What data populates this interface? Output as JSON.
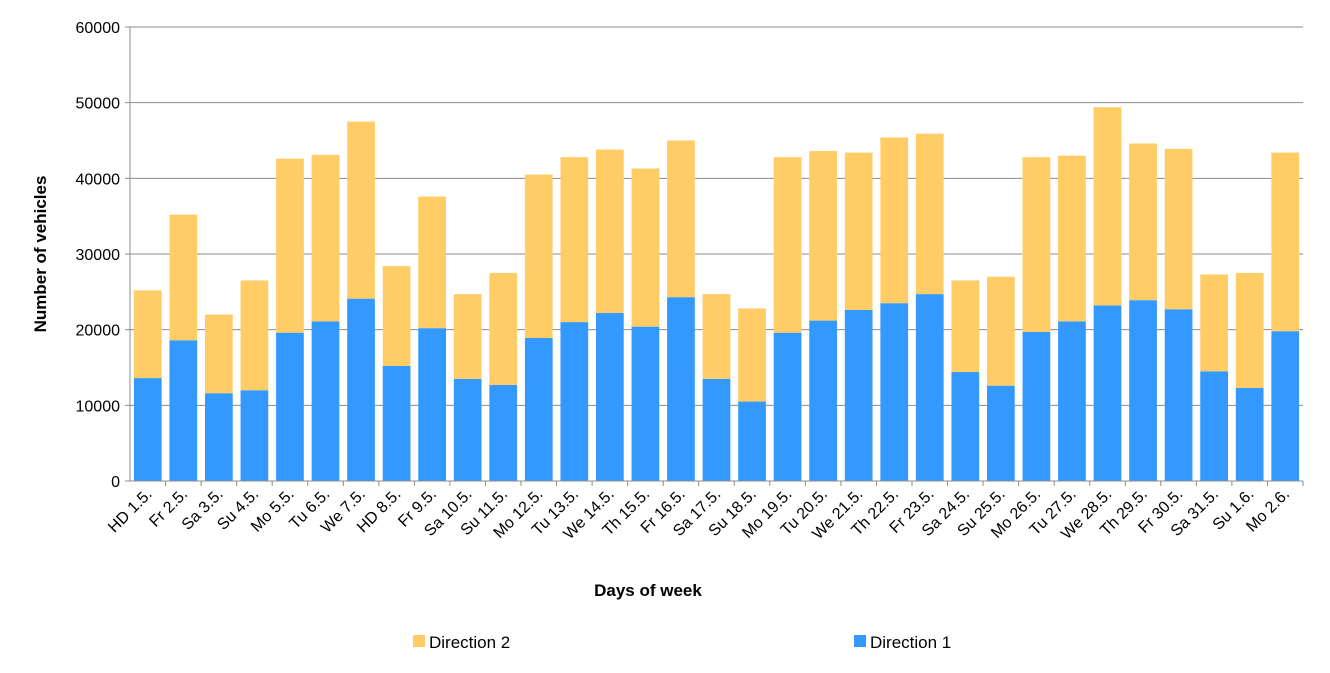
{
  "chart_data": {
    "type": "bar",
    "stacked": true,
    "title": "",
    "xlabel": "Days of week",
    "ylabel": "Number of vehicles",
    "ylim": [
      0,
      60000
    ],
    "yticks": [
      0,
      10000,
      20000,
      30000,
      40000,
      50000,
      60000
    ],
    "grid": true,
    "legend_position": "bottom",
    "categories": [
      "HD 1.5.",
      "Fr 2.5.",
      "Sa 3.5.",
      "Su 4.5.",
      "Mo 5.5.",
      "Tu 6.5.",
      "We 7.5.",
      "HD 8.5.",
      "Fr 9.5.",
      "Sa 10.5.",
      "Su 11.5.",
      "Mo 12.5.",
      "Tu 13.5.",
      "We 14.5.",
      "Th 15.5.",
      "Fr 16.5.",
      "Sa 17.5.",
      "Su 18.5.",
      "Mo 19.5.",
      "Tu 20.5.",
      "We 21.5.",
      "Th 22.5.",
      "Fr 23.5.",
      "Sa 24.5.",
      "Su 25.5.",
      "Mo 26.5.",
      "Tu 27.5.",
      "We 28.5.",
      "Th 29.5.",
      "Fr 30.5.",
      "Sa 31.5.",
      "Su 1.6.",
      "Mo 2.6."
    ],
    "series": [
      {
        "name": "Direction 1",
        "color": "#3399FF",
        "values": [
          13600,
          18600,
          11600,
          12000,
          19600,
          21100,
          24100,
          15200,
          20200,
          13500,
          12700,
          18900,
          21000,
          22200,
          20400,
          24300,
          13500,
          10500,
          19600,
          21200,
          22600,
          23500,
          24700,
          14400,
          12600,
          19700,
          21100,
          23200,
          23900,
          22700,
          14500,
          12300,
          19800
        ]
      },
      {
        "name": "Direction 2",
        "color": "#FFCC66",
        "values": [
          11600,
          16600,
          10400,
          14500,
          23000,
          22000,
          23400,
          13200,
          17400,
          11200,
          14800,
          21600,
          21800,
          21600,
          20900,
          20700,
          11200,
          12300,
          23200,
          22400,
          20800,
          21900,
          21200,
          12100,
          14400,
          23100,
          21900,
          26200,
          20700,
          21200,
          12800,
          15200,
          23600
        ]
      }
    ],
    "legend": [
      "Direction 2",
      "Direction 1"
    ]
  }
}
